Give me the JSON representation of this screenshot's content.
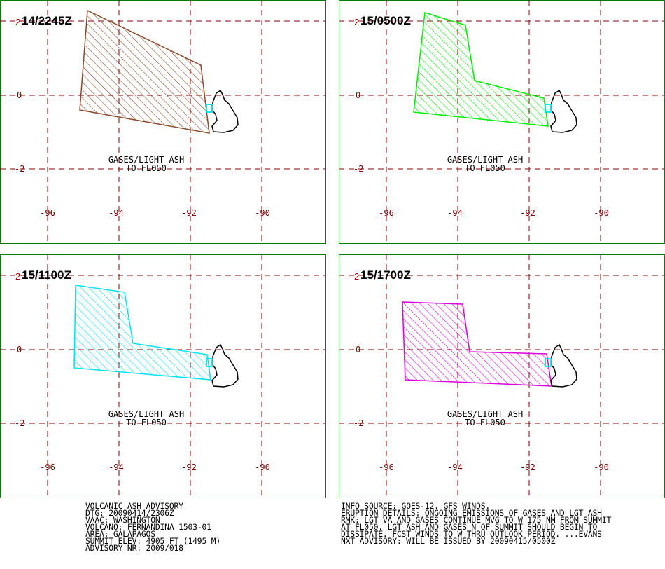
{
  "panels": [
    {
      "title": "14/2245Z",
      "superscript": "2",
      "ash_label_1": "GASES/LIGHT ASH",
      "ash_label_2": "TO FL050",
      "outline_color": "#8b4a2b"
    },
    {
      "title": "15/0500Z",
      "superscript": "2",
      "ash_label_1": "GASES/LIGHT ASH",
      "ash_label_2": "TO FL050",
      "outline_color": "#00ee00"
    },
    {
      "title": "15/1100Z",
      "superscript": "2",
      "ash_label_1": "GASES/LIGHT ASH",
      "ash_label_2": "TO FL050",
      "outline_color": "#00e5ee"
    },
    {
      "title": "15/1700Z",
      "superscript": "2",
      "ash_label_1": "GASES/LIGHT ASH",
      "ash_label_2": "TO FL050",
      "outline_color": "#dd00dd"
    }
  ],
  "axis": {
    "lon_ticks": [
      "-96",
      "-94",
      "-92",
      "-90"
    ],
    "lat_ticks": [
      "0",
      "-2"
    ]
  },
  "colors": {
    "frame": "#008000",
    "grid": "#8b0000",
    "ticks": "#7a0000",
    "land": "#000000",
    "volcano_marker": "#00e5ee"
  },
  "advisory_left": {
    "line1": "VOLCANIC ASH ADVISORY",
    "line2": "DTG: 20090414/2306Z",
    "line3": "VAAC: WASHINGTON",
    "line4": "VOLCANO: FERNANDINA 1503-01",
    "line5": "AREA: GALAPAGOS",
    "line6": "SUMMIT ELEV: 4905 FT (1495 M)",
    "line7": "ADVISORY NR: 2009/018"
  },
  "advisory_right": {
    "line1": "INFO SOURCE: GOES-12. GFS WINDS.",
    "line2": "ERUPTION DETAILS: ONGOING EMISSIONS OF GASES AND LGT ASH",
    "line3": "RMK: LGT VA AND GASES CONTINUE MVG TO W 175 NM FROM SUMMIT",
    "line4": "AT FL050. LGT ASH AND GASES N OF SUMMIT SHOULD BEGIN TO",
    "line5": "DISSIPATE. FCST WINDS TO W THRU OUTLOOK PERIOD. ...EVANS",
    "line6": "NXT ADVISORY: WILL BE ISSUED BY 20090415/0500Z"
  }
}
